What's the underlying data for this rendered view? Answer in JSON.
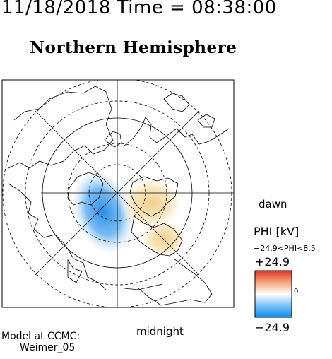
{
  "header": {
    "timestamp": "11/18/2018 Time = 08:38:00",
    "title": "Northern Hemisphere"
  },
  "map": {
    "projection": "polar",
    "orientation": {
      "right": "dawn",
      "bottom": "midnight"
    },
    "dawn_label": "dawn",
    "midnight_label": "midnight",
    "latitude_circles_deg": [
      80,
      70,
      60,
      50
    ],
    "field": {
      "positive_cell_color": "#f6dca0",
      "negative_cell_color": "#2b8fe8"
    }
  },
  "colorbar": {
    "title": "PHI [kV]",
    "range_text": "−24.9<PHI<8.5",
    "max_label": "+24.9",
    "min_label": "−24.9",
    "zero_label": "0",
    "colors": {
      "top": "#e0302a",
      "middle": "#ffffff",
      "bottom": "#0a8cf0"
    }
  },
  "footer": {
    "model_label": "Model at CCMC:",
    "model_name": "Weimer_05"
  }
}
